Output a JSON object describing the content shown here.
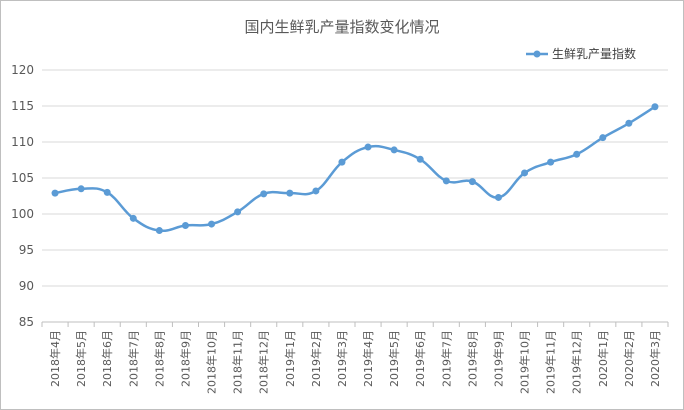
{
  "chart_data": {
    "type": "line",
    "title": "国内生鲜乳产量指数变化情况",
    "categories": [
      "2018年4月",
      "2018年5月",
      "2018年6月",
      "2018年7月",
      "2018年8月",
      "2018年9月",
      "2018年10月",
      "2018年11月",
      "2018年12月",
      "2019年1月",
      "2019年2月",
      "2019年3月",
      "2019年4月",
      "2019年5月",
      "2019年6月",
      "2019年7月",
      "2019年8月",
      "2019年9月",
      "2019年10月",
      "2019年11月",
      "2019年12月",
      "2020年1月",
      "2020年2月",
      "2020年3月"
    ],
    "series": [
      {
        "name": "生鲜乳产量指数",
        "color": "#5b9bd5",
        "values": [
          102.9,
          103.5,
          103.0,
          99.4,
          97.7,
          98.4,
          98.6,
          100.3,
          102.8,
          102.9,
          103.2,
          107.2,
          109.3,
          108.9,
          107.6,
          104.6,
          104.5,
          102.3,
          105.7,
          107.2,
          108.3,
          110.6,
          112.6,
          114.9
        ]
      }
    ],
    "ylim": [
      85,
      120
    ],
    "yticks": [
      85,
      90,
      95,
      100,
      105,
      110,
      115,
      120
    ],
    "xlabel": "",
    "ylabel": "",
    "grid": true,
    "legend_position": "top-right"
  }
}
